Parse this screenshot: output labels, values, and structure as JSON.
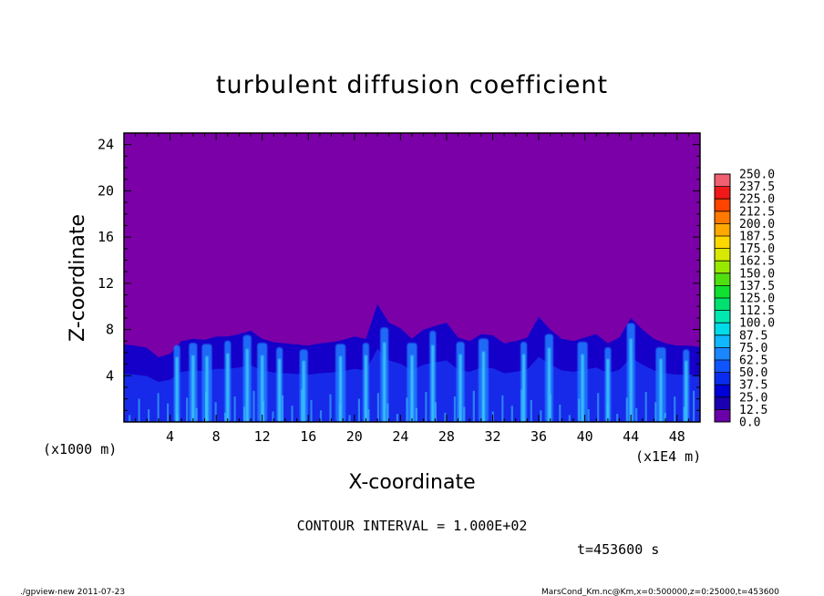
{
  "chart_data": {
    "type": "heatmap",
    "title": "turbulent diffusion coefficient",
    "xlabel": "X-coordinate",
    "ylabel": "Z-coordinate",
    "x_unit_left": "(x1000 m)",
    "x_unit_right": "(x1E4 m)",
    "xlim": [
      0,
      50
    ],
    "ylim": [
      0,
      25
    ],
    "x_ticks": [
      "4",
      "8",
      "12",
      "16",
      "20",
      "24",
      "28",
      "32",
      "36",
      "40",
      "44",
      "48"
    ],
    "y_ticks": [
      "4",
      "8",
      "12",
      "16",
      "20",
      "24"
    ],
    "contour_interval": "CONTOUR INTERVAL = 1.000E+02",
    "time_label": "t=453600 s",
    "colorbar": {
      "levels": [
        "0.0",
        "12.5",
        "25.0",
        "37.5",
        "50.0",
        "62.5",
        "75.0",
        "87.5",
        "100.0",
        "112.5",
        "125.0",
        "137.5",
        "150.0",
        "162.5",
        "175.0",
        "187.5",
        "200.0",
        "212.5",
        "225.0",
        "237.5",
        "250.0"
      ],
      "colors": [
        "#6a00a8",
        "#1a00b0",
        "#0000d8",
        "#0a2cf0",
        "#0f55ff",
        "#1a86ff",
        "#10b8ff",
        "#00dcea",
        "#00e8b0",
        "#00e070",
        "#10e030",
        "#50e010",
        "#98e800",
        "#d8e800",
        "#ffd800",
        "#ffa800",
        "#ff7800",
        "#ff4400",
        "#f01818",
        "#f06070"
      ]
    },
    "field_colors": {
      "background": "#7b00a8",
      "deep": "#1400c8",
      "mid": "#1830ee",
      "light": "#1e7cff",
      "bright": "#3cc8ff"
    },
    "turbulent_layer_top": [
      6.7,
      6.6,
      6.4,
      5.6,
      5.9,
      7.0,
      7.2,
      7.1,
      7.4,
      7.4,
      7.6,
      7.9,
      7.2,
      6.9,
      6.8,
      6.7,
      6.6,
      6.8,
      6.9,
      7.1,
      7.4,
      7.2,
      10.2,
      8.6,
      8.1,
      7.2,
      8.0,
      8.3,
      8.6,
      7.3,
      7.0,
      7.6,
      7.5,
      6.8,
      7.0,
      7.3,
      9.1,
      8.0,
      7.2,
      7.0,
      7.3,
      7.6,
      6.8,
      7.3,
      9.0,
      8.0,
      7.2,
      6.8,
      6.6,
      6.6,
      6.5
    ],
    "plumes_x": [
      4.6,
      6.0,
      7.2,
      9.0,
      10.7,
      12.0,
      13.5,
      15.6,
      18.8,
      21.0,
      22.6,
      25.0,
      26.8,
      29.2,
      31.2,
      34.7,
      36.9,
      39.8,
      42.0,
      44.0,
      46.6,
      48.8
    ]
  },
  "footer": {
    "left": "./gpview-new   2011-07-23",
    "right": "MarsCond_Km.nc@Km,x=0:500000,z=0:25000,t=453600"
  }
}
